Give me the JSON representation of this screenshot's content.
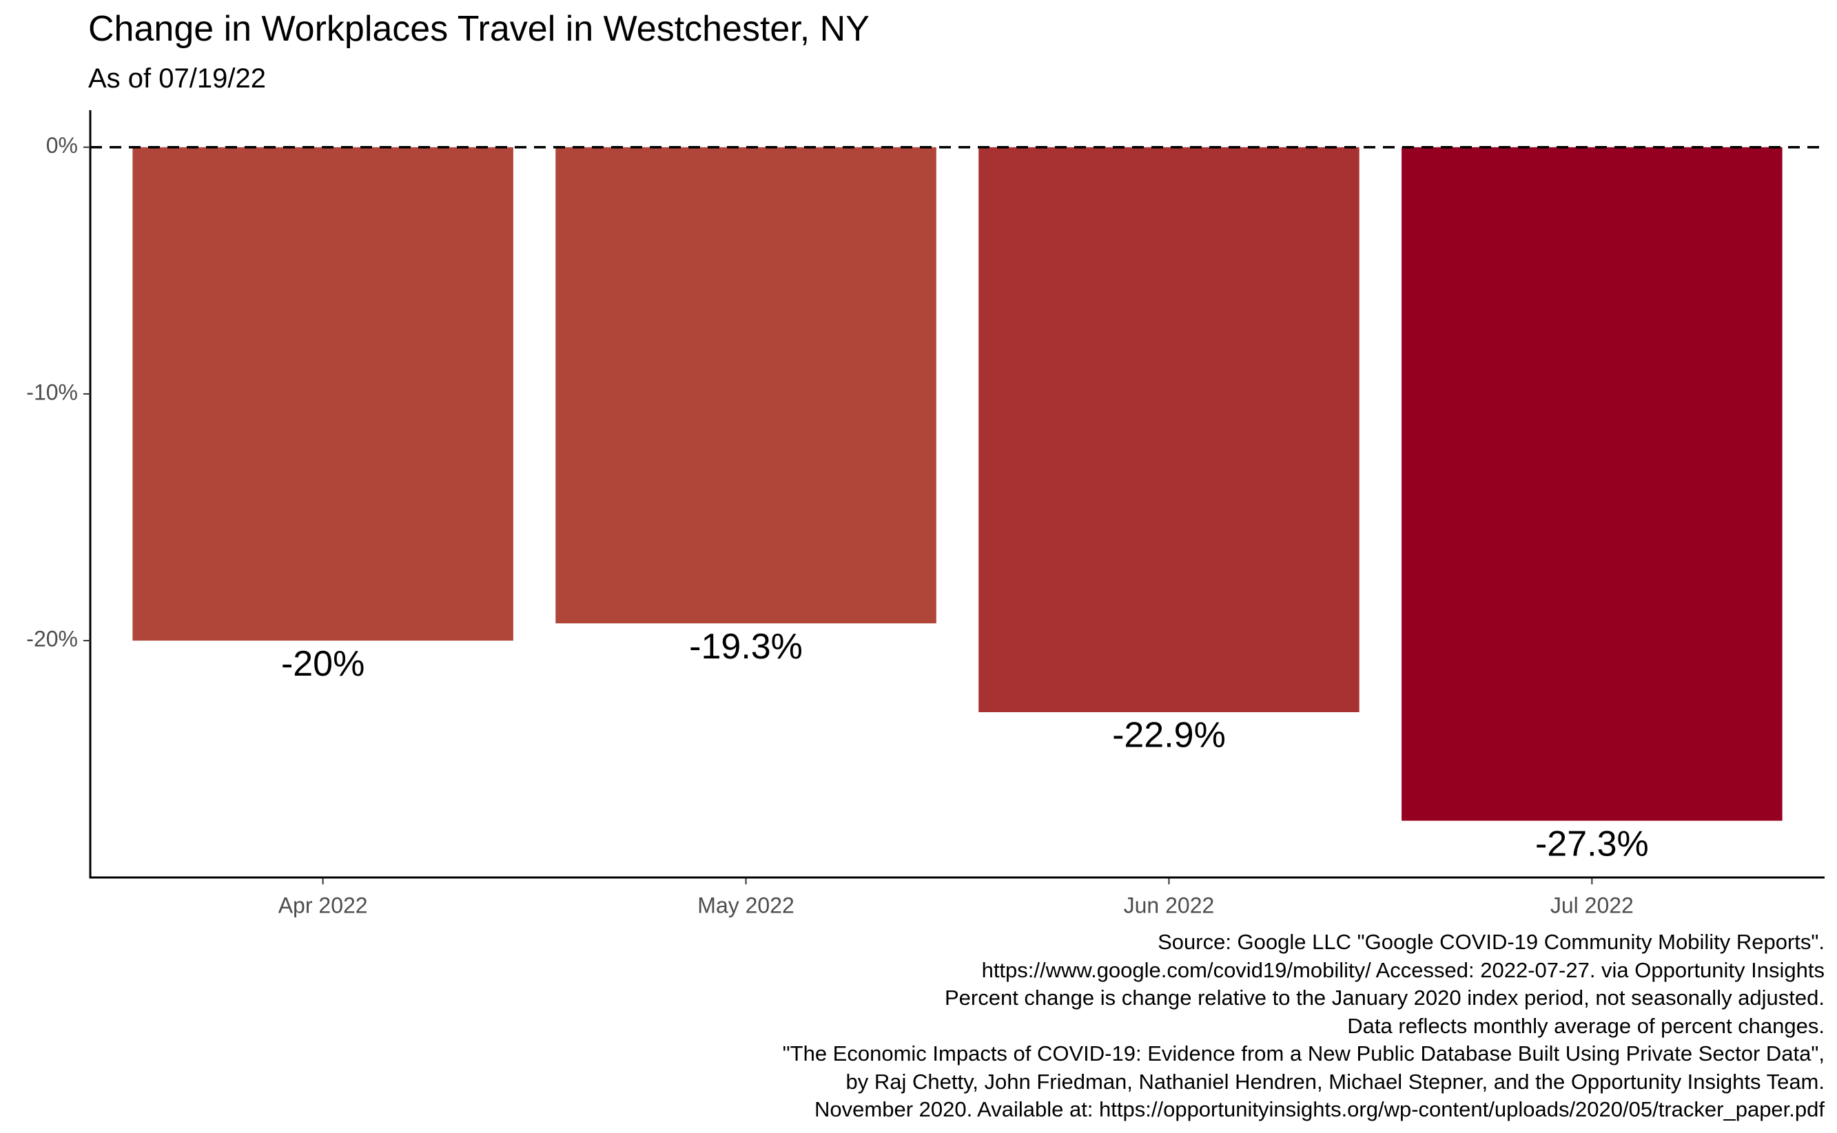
{
  "title": "Change in Workplaces Travel in Westchester, NY",
  "subtitle": "As of 07/19/22",
  "caption_lines": [
    "Source: Google LLC \"Google COVID-19 Community Mobility Reports\".",
    "https://www.google.com/covid19/mobility/ Accessed: 2022-07-27. via Opportunity Insights",
    "Percent change is change relative to the January 2020 index period, not seasonally adjusted.",
    "Data reflects monthly average of percent changes.",
    "\"The Economic Impacts of COVID-19: Evidence from a New Public Database Built Using Private Sector Data\",",
    "by Raj Chetty, John Friedman, Nathaniel Hendren, Michael Stepner, and the Opportunity Insights Team.",
    "November 2020. Available at: https://opportunityinsights.org/wp-content/uploads/2020/05/tracker_paper.pdf"
  ],
  "chart_data": {
    "type": "bar",
    "title": "Change in Workplaces Travel in Westchester, NY",
    "subtitle": "As of 07/19/22",
    "xlabel": "",
    "ylabel": "",
    "categories": [
      "Apr 2022",
      "May 2022",
      "Jun 2022",
      "Jul 2022"
    ],
    "values": [
      -20,
      -19.3,
      -22.9,
      -27.3
    ],
    "data_labels": [
      "-20%",
      "-19.3%",
      "-22.9%",
      "-27.3%"
    ],
    "colors": [
      "#b0453a",
      "#b0453a",
      "#a83232",
      "#960020"
    ],
    "ylim": [
      -29.6,
      1.5
    ],
    "yticks": [
      0,
      -10,
      -20
    ],
    "ytick_labels": [
      "0%",
      "-10%",
      "-20%"
    ],
    "reference_line": {
      "y": 0,
      "style": "dashed",
      "color": "#000000"
    },
    "grid": false,
    "legend": "none"
  }
}
